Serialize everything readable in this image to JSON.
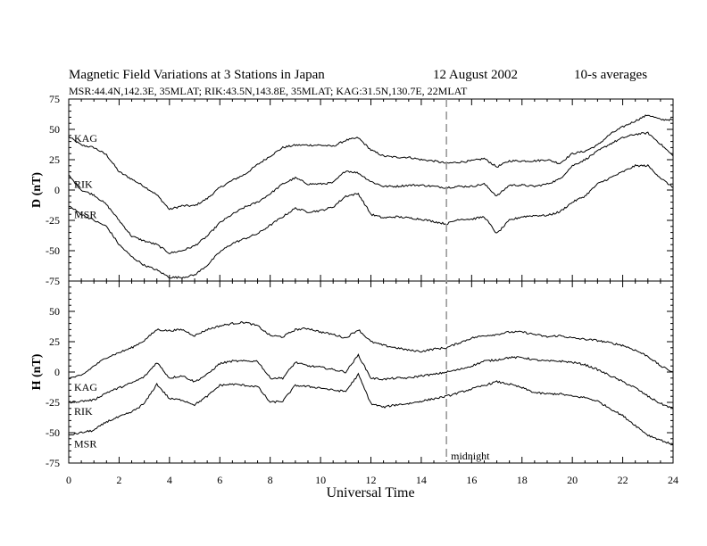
{
  "chart_data": [
    {
      "type": "line",
      "title": "Magnetic Field Variations at 3 Stations in Japan",
      "date": "12 August  2002",
      "averaging": "10-s averages",
      "stations_line": "MSR:44.4N,142.3E, 35MLAT;   RIK:43.5N,143.8E, 35MLAT;   KAG:31.5N,130.7E, 22MLAT",
      "ylabel": "D (nT)",
      "xlabel": "Universal Time",
      "xlim": [
        0,
        24
      ],
      "ylim": [
        -75,
        75
      ],
      "x_ticks": [
        "0",
        "2",
        "4",
        "6",
        "8",
        "10",
        "12",
        "14",
        "16",
        "18",
        "20",
        "22",
        "24"
      ],
      "y_ticks": [
        "75",
        "50",
        "25",
        "0",
        "-25",
        "-50",
        "-75"
      ],
      "marker": {
        "x": 15,
        "label": ""
      },
      "series": [
        {
          "name": "KAG",
          "x": [
            0,
            0.5,
            1,
            1.5,
            2,
            2.5,
            3,
            3.5,
            4,
            4.5,
            5,
            5.5,
            6,
            6.5,
            7,
            7.5,
            8,
            8.5,
            9,
            9.5,
            10,
            10.5,
            11,
            11.5,
            12,
            12.5,
            13,
            13.5,
            14,
            14.5,
            15,
            15.5,
            16,
            16.5,
            17,
            17.5,
            18,
            18.5,
            19,
            19.5,
            20,
            20.5,
            21,
            21.5,
            22,
            22.5,
            23,
            23.5,
            24
          ],
          "y": [
            44,
            37,
            35,
            29,
            15,
            9,
            3,
            -4,
            -16,
            -13,
            -13,
            -7,
            2,
            8,
            13,
            21,
            28,
            35,
            37,
            37,
            37,
            36,
            41,
            43,
            33,
            28,
            27,
            27,
            25,
            24,
            22,
            23,
            24,
            26,
            19,
            24,
            24,
            24,
            25,
            22,
            30,
            32,
            37,
            46,
            52,
            57,
            62,
            58,
            58
          ]
        },
        {
          "name": "RIK",
          "x": [
            0,
            0.5,
            1,
            1.5,
            2,
            2.5,
            3,
            3.5,
            4,
            4.5,
            5,
            5.5,
            6,
            6.5,
            7,
            7.5,
            8,
            8.5,
            9,
            9.5,
            10,
            10.5,
            11,
            11.5,
            12,
            12.5,
            13,
            13.5,
            14,
            14.5,
            15,
            15.5,
            16,
            16.5,
            17,
            17.5,
            18,
            18.5,
            19,
            19.5,
            20,
            20.5,
            21,
            21.5,
            22,
            22.5,
            23,
            23.5,
            24
          ],
          "y": [
            12,
            0,
            -4,
            -12,
            -25,
            -38,
            -42,
            -45,
            -52,
            -50,
            -46,
            -38,
            -27,
            -20,
            -14,
            -10,
            -3,
            5,
            10,
            5,
            5,
            6,
            16,
            14,
            7,
            3,
            3,
            4,
            4,
            3,
            2,
            3,
            3,
            5,
            -5,
            4,
            4,
            3,
            5,
            9,
            20,
            25,
            32,
            38,
            43,
            46,
            47,
            38,
            28
          ]
        },
        {
          "name": "MSR",
          "x": [
            0,
            0.5,
            1,
            1.5,
            2,
            2.5,
            3,
            3.5,
            4,
            4.5,
            5,
            5.5,
            6,
            6.5,
            7,
            7.5,
            8,
            8.5,
            9,
            9.5,
            10,
            10.5,
            11,
            11.5,
            12,
            12.5,
            13,
            13.5,
            14,
            14.5,
            15,
            15.5,
            16,
            16.5,
            17,
            17.5,
            18,
            18.5,
            19,
            19.5,
            20,
            20.5,
            21,
            21.5,
            22,
            22.5,
            23,
            23.5,
            24
          ],
          "y": [
            -13,
            -20,
            -25,
            -30,
            -45,
            -55,
            -62,
            -66,
            -72,
            -72,
            -70,
            -62,
            -51,
            -44,
            -40,
            -36,
            -29,
            -22,
            -15,
            -18,
            -17,
            -14,
            -5,
            -3,
            -20,
            -23,
            -22,
            -23,
            -24,
            -26,
            -28,
            -24,
            -24,
            -22,
            -36,
            -25,
            -22,
            -21,
            -21,
            -18,
            -10,
            -5,
            5,
            10,
            15,
            20,
            20,
            10,
            2
          ]
        }
      ]
    },
    {
      "type": "line",
      "ylabel": "H (nT)",
      "xlabel": "Universal Time",
      "xlim": [
        0,
        24
      ],
      "ylim": [
        -75,
        75
      ],
      "x_ticks": [
        "0",
        "2",
        "4",
        "6",
        "8",
        "10",
        "12",
        "14",
        "16",
        "18",
        "20",
        "22",
        "24"
      ],
      "y_ticks": [
        "50",
        "25",
        "0",
        "-25",
        "-50",
        "-75"
      ],
      "marker": {
        "x": 15,
        "label": "midnight"
      },
      "series": [
        {
          "name": "KAG",
          "x": [
            0,
            0.5,
            1,
            1.5,
            2,
            2.5,
            3,
            3.5,
            4,
            4.5,
            5,
            5.5,
            6,
            6.5,
            7,
            7.5,
            8,
            8.5,
            9,
            9.5,
            10,
            10.5,
            11,
            11.5,
            12,
            12.5,
            13,
            13.5,
            14,
            14.5,
            15,
            15.5,
            16,
            16.5,
            17,
            17.5,
            18,
            18.5,
            19,
            19.5,
            20,
            20.5,
            21,
            21.5,
            22,
            22.5,
            23,
            23.5,
            24
          ],
          "y": [
            -5,
            -3,
            5,
            12,
            16,
            20,
            26,
            35,
            34,
            35,
            30,
            35,
            38,
            40,
            41,
            38,
            30,
            29,
            35,
            36,
            33,
            31,
            28,
            35,
            25,
            22,
            20,
            18,
            17,
            19,
            20,
            24,
            28,
            30,
            31,
            33,
            33,
            31,
            29,
            30,
            28,
            27,
            26,
            24,
            22,
            18,
            13,
            5,
            0
          ]
        },
        {
          "name": "RIK",
          "x": [
            0,
            0.5,
            1,
            1.5,
            2,
            2.5,
            3,
            3.5,
            4,
            4.5,
            5,
            5.5,
            6,
            6.5,
            7,
            7.5,
            8,
            8.5,
            9,
            9.5,
            10,
            10.5,
            11,
            11.5,
            12,
            12.5,
            13,
            13.5,
            14,
            14.5,
            15,
            15.5,
            16,
            16.5,
            17,
            17.5,
            18,
            18.5,
            19,
            19.5,
            20,
            20.5,
            21,
            21.5,
            22,
            22.5,
            23,
            23.5,
            24
          ],
          "y": [
            -25,
            -24,
            -23,
            -17,
            -13,
            -9,
            -4,
            8,
            -5,
            -3,
            -8,
            -2,
            7,
            9,
            9,
            9,
            -5,
            -5,
            8,
            5,
            4,
            2,
            0,
            14,
            -5,
            -6,
            -5,
            -5,
            -3,
            -2,
            0,
            2,
            5,
            9,
            10,
            12,
            12,
            10,
            9,
            9,
            8,
            6,
            2,
            -3,
            -8,
            -13,
            -20,
            -26,
            -30
          ]
        },
        {
          "name": "MSR",
          "x": [
            0,
            0.5,
            1,
            1.5,
            2,
            2.5,
            3,
            3.5,
            4,
            4.5,
            5,
            5.5,
            6,
            6.5,
            7,
            7.5,
            8,
            8.5,
            9,
            9.5,
            10,
            10.5,
            11,
            11.5,
            12,
            12.5,
            13,
            13.5,
            14,
            14.5,
            15,
            15.5,
            16,
            16.5,
            17,
            17.5,
            18,
            18.5,
            19,
            19.5,
            20,
            20.5,
            21,
            21.5,
            22,
            22.5,
            23,
            23.5,
            24
          ],
          "y": [
            -52,
            -50,
            -48,
            -41,
            -37,
            -33,
            -26,
            -10,
            -22,
            -23,
            -27,
            -20,
            -11,
            -10,
            -11,
            -12,
            -25,
            -24,
            -11,
            -12,
            -13,
            -15,
            -16,
            -2,
            -26,
            -29,
            -27,
            -26,
            -24,
            -22,
            -20,
            -17,
            -14,
            -11,
            -8,
            -10,
            -13,
            -17,
            -18,
            -18,
            -20,
            -21,
            -24,
            -30,
            -36,
            -44,
            -52,
            -56,
            -60
          ]
        }
      ]
    }
  ]
}
